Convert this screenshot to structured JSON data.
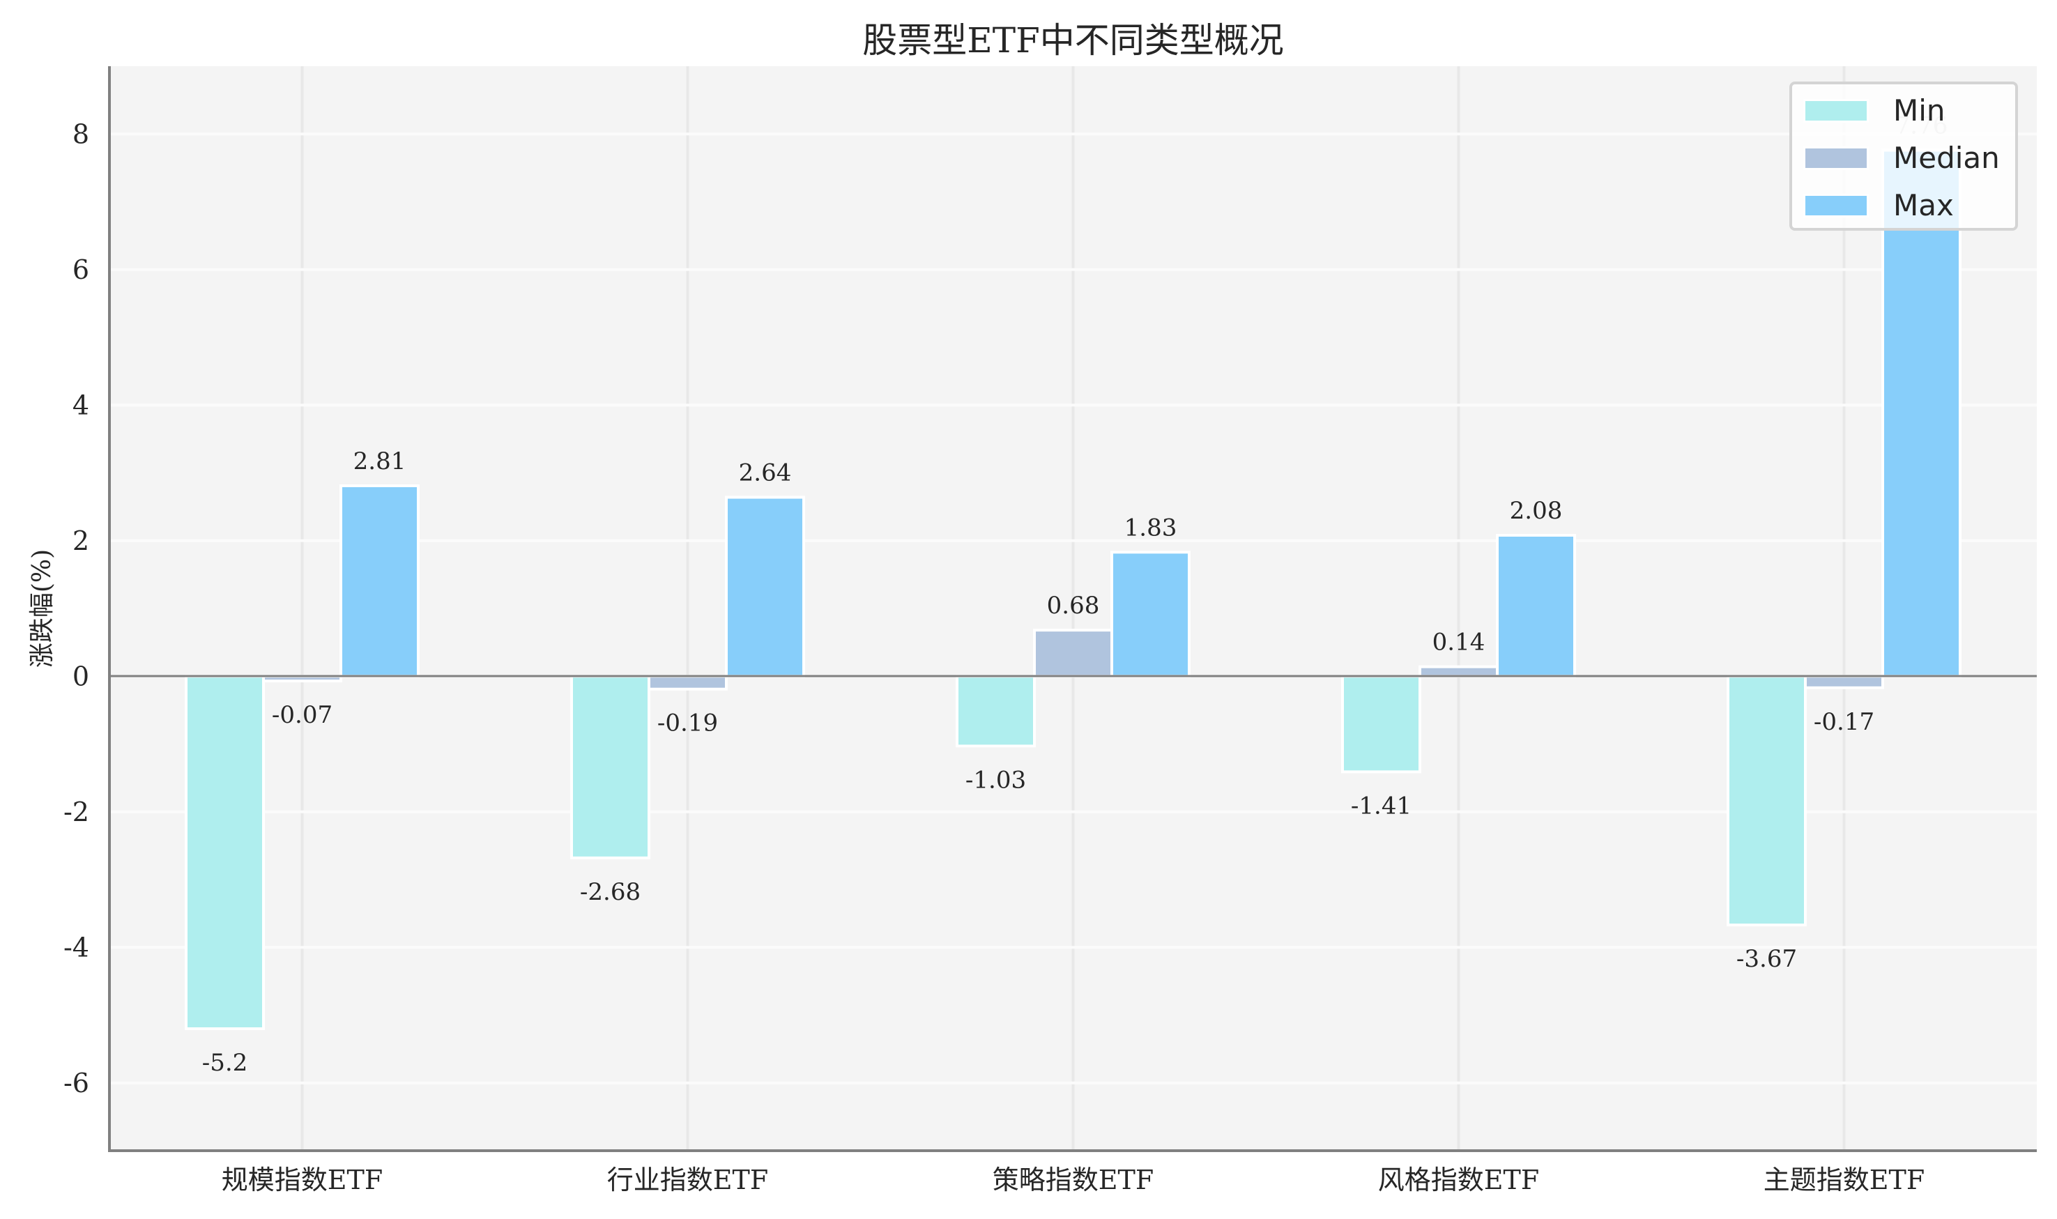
{
  "title": "股票型ETF中不同类型概况",
  "chart_data": {
    "type": "bar",
    "title": "股票型ETF中不同类型概况",
    "xlabel": "",
    "ylabel": "涨跌幅(%)",
    "categories": [
      "规模指数ETF",
      "行业指数ETF",
      "策略指数ETF",
      "风格指数ETF",
      "主题指数ETF"
    ],
    "series": [
      {
        "name": "Min",
        "color": "#AFEEEE",
        "values": [
          -5.2,
          -2.68,
          -1.03,
          -1.41,
          -3.67
        ]
      },
      {
        "name": "Median",
        "color": "#B0C4DE",
        "values": [
          -0.07,
          -0.19,
          0.68,
          0.14,
          -0.17
        ]
      },
      {
        "name": "Max",
        "color": "#87CEFA",
        "values": [
          2.81,
          2.64,
          1.83,
          2.08,
          7.76
        ]
      }
    ],
    "data_labels": [
      [
        "-5.2",
        "-2.68",
        "-1.03",
        "-1.41",
        "-3.67"
      ],
      [
        "-0.07",
        "-0.19",
        "0.68",
        "0.14",
        "-0.17"
      ],
      [
        "2.81",
        "2.64",
        "1.83",
        "2.08",
        "7.76"
      ]
    ],
    "ylim": [
      -7,
      9
    ],
    "yticks": [
      -6,
      -4,
      -2,
      0,
      2,
      4,
      6,
      8
    ],
    "ytick_labels": [
      "-6",
      "-4",
      "-2",
      "0",
      "2",
      "4",
      "6",
      "8"
    ],
    "grid": true,
    "legend_position": "upper right",
    "background": "#F4F4F4"
  },
  "legend": {
    "items": [
      {
        "label": "Min",
        "color": "#AFEEEE"
      },
      {
        "label": "Median",
        "color": "#B0C4DE"
      },
      {
        "label": "Max",
        "color": "#87CEFA"
      }
    ]
  }
}
